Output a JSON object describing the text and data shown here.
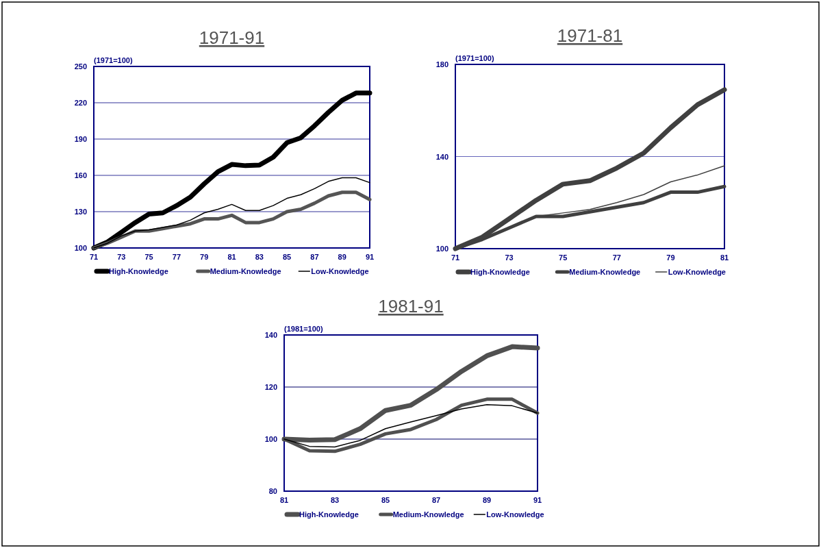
{
  "chart_data": [
    {
      "type": "line",
      "title": "1971-91",
      "ylabel": "(1971=100)",
      "x": [
        71,
        72,
        73,
        74,
        75,
        76,
        77,
        78,
        79,
        80,
        81,
        82,
        83,
        84,
        85,
        86,
        87,
        88,
        89,
        90,
        91
      ],
      "xlim": [
        71,
        91
      ],
      "xticks": [
        71,
        73,
        75,
        77,
        79,
        81,
        83,
        85,
        87,
        89,
        91
      ],
      "ylim": [
        100,
        250
      ],
      "yticks": [
        100,
        130,
        160,
        190,
        220,
        250
      ],
      "grid": "y",
      "legend": "bottom",
      "marker": "none",
      "line_style": "solid",
      "series": [
        {
          "name": "High-Knowledge",
          "color": "#000000",
          "values": [
            100,
            105,
            113,
            121,
            128,
            129,
            135,
            142,
            153,
            163,
            169,
            168,
            168.5,
            175,
            187,
            191,
            201,
            212,
            222,
            228,
            228
          ]
        },
        {
          "name": "Medium-Knowledge",
          "color": "#555555",
          "values": [
            100,
            104,
            109,
            114,
            114,
            116,
            118,
            120,
            124,
            124,
            127,
            121,
            121,
            124,
            130,
            132,
            137,
            143,
            146,
            146,
            140
          ]
        },
        {
          "name": "Low-Knowledge",
          "color": "#000000",
          "values": [
            100,
            104,
            110,
            114,
            115,
            117,
            119,
            123,
            129,
            132,
            136,
            131,
            131,
            135,
            141,
            144,
            149,
            155,
            158,
            158,
            154
          ]
        }
      ]
    },
    {
      "type": "line",
      "title": "1971-81",
      "ylabel": "(1971=100)",
      "x": [
        71,
        72,
        73,
        74,
        75,
        76,
        77,
        78,
        79,
        80,
        81
      ],
      "xlim": [
        71,
        81
      ],
      "xticks": [
        71,
        73,
        75,
        77,
        79,
        81
      ],
      "ylim": [
        100,
        180
      ],
      "yticks": [
        100,
        140,
        180
      ],
      "ref_lines": [
        {
          "axis": "y",
          "value": 140,
          "color": "#6666bb"
        }
      ],
      "legend": "bottom",
      "marker": "none",
      "line_style": "solid",
      "series": [
        {
          "name": "High-Knowledge",
          "color": "#404040",
          "values": [
            100,
            105,
            113,
            121,
            128,
            129.5,
            135,
            141.5,
            152.5,
            162.5,
            169
          ]
        },
        {
          "name": "Medium-Knowledge",
          "color": "#404040",
          "values": [
            100,
            104,
            109,
            114,
            114,
            116,
            118,
            120,
            124.5,
            124.5,
            127
          ]
        },
        {
          "name": "Low-Knowledge",
          "color": "#404040",
          "values": [
            100,
            104,
            109,
            114,
            115.5,
            117,
            120,
            123.5,
            129,
            132,
            136
          ]
        }
      ]
    },
    {
      "type": "line",
      "title": "1981-91",
      "ylabel": "(1981=100)",
      "x": [
        81,
        82,
        83,
        84,
        85,
        86,
        87,
        88,
        89,
        90,
        91
      ],
      "xlim": [
        81,
        91
      ],
      "xticks": [
        81,
        83,
        85,
        87,
        89,
        91
      ],
      "ylim": [
        80,
        140
      ],
      "yticks": [
        80,
        100,
        120,
        140
      ],
      "grid": "y",
      "legend": "bottom",
      "marker": "none",
      "line_style": "solid",
      "series": [
        {
          "name": "High-Knowledge",
          "color": "#505050",
          "values": [
            100,
            99.6,
            99.8,
            104,
            111,
            113,
            119,
            126,
            132,
            135.5,
            135
          ]
        },
        {
          "name": "Medium-Knowledge",
          "color": "#505050",
          "values": [
            100,
            95.5,
            95.3,
            98,
            102,
            103.7,
            107.5,
            113,
            115.3,
            115.3,
            110
          ]
        },
        {
          "name": "Low-Knowledge",
          "color": "#000000",
          "values": [
            100,
            97.2,
            97,
            99.5,
            104,
            106.6,
            109,
            111.6,
            113.2,
            112.8,
            110
          ]
        }
      ]
    }
  ]
}
